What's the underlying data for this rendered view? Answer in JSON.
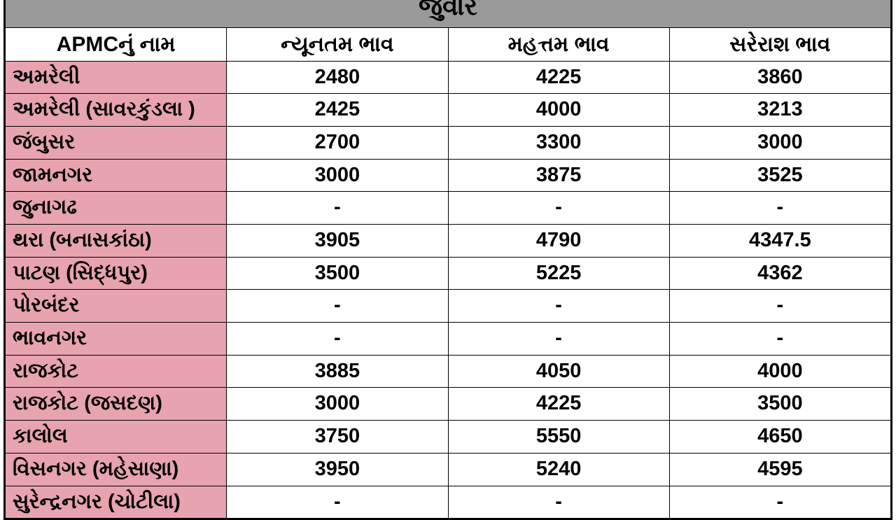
{
  "table": {
    "title": "જુવાર",
    "columns": [
      "APMCનું નામ",
      "ન્યૂનતમ ભાવ",
      "મહત્તમ ભાવ",
      "સરેરાશ ભાવ"
    ],
    "rows": [
      {
        "name": "અમરેલી",
        "min": "2480",
        "max": "4225",
        "avg": "3860"
      },
      {
        "name": "અમરેલી (સાવરકુંડલા )",
        "min": "2425",
        "max": "4000",
        "avg": "3213"
      },
      {
        "name": "જંબુસર",
        "min": "2700",
        "max": "3300",
        "avg": "3000"
      },
      {
        "name": "જામનગર",
        "min": "3000",
        "max": "3875",
        "avg": "3525"
      },
      {
        "name": "જુનાગઢ",
        "min": "-",
        "max": "-",
        "avg": "-"
      },
      {
        "name": "થરા (બનાસકાંઠા)",
        "min": "3905",
        "max": "4790",
        "avg": "4347.5"
      },
      {
        "name": "પાટણ (સિદ્ધપુર)",
        "min": "3500",
        "max": "5225",
        "avg": "4362"
      },
      {
        "name": "પોરબંદર",
        "min": "-",
        "max": "-",
        "avg": "-"
      },
      {
        "name": "ભાવનગર",
        "min": "-",
        "max": "-",
        "avg": "-"
      },
      {
        "name": "રાજકોટ",
        "min": "3885",
        "max": "4050",
        "avg": "4000"
      },
      {
        "name": "રાજકોટ  (જસદણ)",
        "min": "3000",
        "max": "4225",
        "avg": "3500"
      },
      {
        "name": "કાલોલ",
        "min": "3750",
        "max": "5550",
        "avg": "4650"
      },
      {
        "name": "વિસનગર (મહેસાણા)",
        "min": "3950",
        "max": "5240",
        "avg": "4595"
      },
      {
        "name": "સુરેન્દ્રનગર (ચોટીલા)",
        "min": "-",
        "max": "-",
        "avg": "-"
      }
    ],
    "colors": {
      "title_bg": "#9a9a9a",
      "name_col_bg": "#e7a3af",
      "cell_bg": "#ffffff",
      "border": "#000000",
      "text": "#000000"
    },
    "fontsize": {
      "title": 36,
      "header": 30,
      "cell": 29
    },
    "col_widths_pct": [
      34,
      22,
      22,
      22
    ]
  }
}
